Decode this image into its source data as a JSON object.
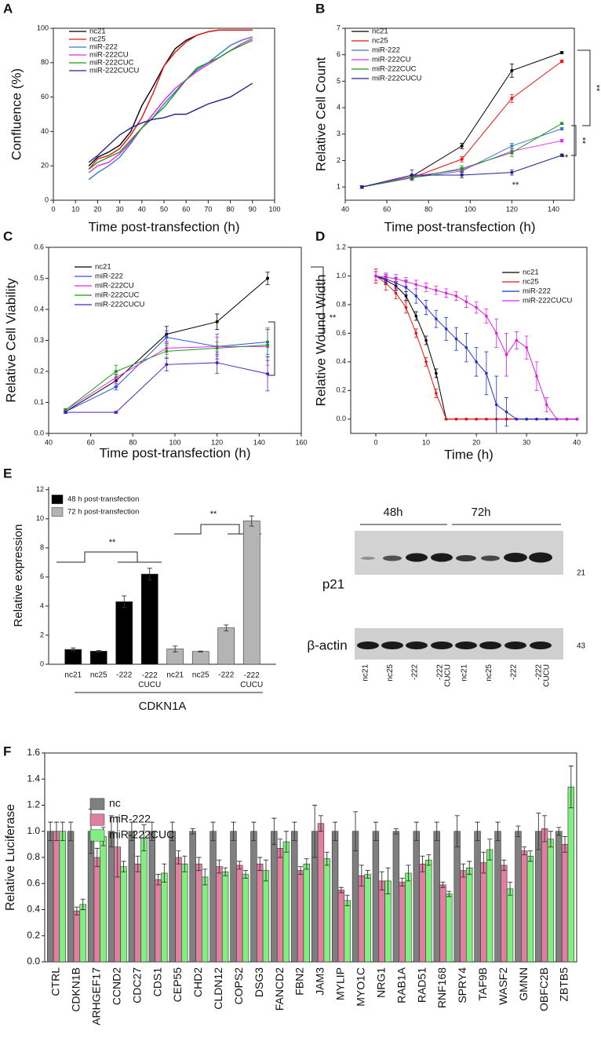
{
  "chart_data": [
    {
      "panel": "A",
      "type": "line",
      "xlabel": "Time post-transfection (h)",
      "ylabel": "Confluence (%)",
      "xlim": [
        0,
        100
      ],
      "ylim": [
        0,
        100
      ],
      "xticks": [
        0,
        10,
        20,
        30,
        40,
        50,
        60,
        70,
        80,
        90,
        100
      ],
      "yticks": [
        0,
        20,
        40,
        60,
        80,
        100
      ],
      "legend": "upper left",
      "markers": false,
      "x": [
        16,
        20,
        25,
        30,
        35,
        40,
        45,
        50,
        55,
        60,
        65,
        70,
        75,
        80,
        85,
        90
      ],
      "series": [
        {
          "name": "nc21",
          "color": "#000000",
          "values": [
            20,
            25,
            28,
            32,
            40,
            55,
            66,
            78,
            88,
            93,
            96,
            98,
            99,
            99,
            99,
            99
          ]
        },
        {
          "name": "nc25",
          "color": "#ee1111",
          "values": [
            18,
            24,
            26,
            30,
            38,
            48,
            62,
            78,
            86,
            92,
            96,
            98,
            99,
            99,
            99,
            99
          ]
        },
        {
          "name": "miR-222",
          "color": "#3a78c8",
          "values": [
            12,
            16,
            20,
            25,
            33,
            42,
            48,
            56,
            63,
            70,
            76,
            80,
            85,
            90,
            93,
            95
          ]
        },
        {
          "name": "miR-222CU",
          "color": "#ee22ee",
          "values": [
            16,
            20,
            22,
            27,
            34,
            42,
            50,
            58,
            65,
            70,
            75,
            79,
            83,
            87,
            91,
            94
          ]
        },
        {
          "name": "miR-222CUC",
          "color": "#1a9a1a",
          "values": [
            18,
            22,
            25,
            28,
            35,
            42,
            48,
            54,
            62,
            70,
            77,
            80,
            83,
            87,
            90,
            93
          ]
        },
        {
          "name": "miR-222CUCU",
          "color": "#22228c",
          "values": [
            22,
            26,
            32,
            38,
            42,
            45,
            47,
            48,
            50,
            50,
            53,
            56,
            58,
            60,
            64,
            68
          ]
        }
      ]
    },
    {
      "panel": "B",
      "type": "line",
      "xlabel": "Time post-transfection (h)",
      "ylabel": "Relative Cell Count",
      "xlim": [
        40,
        150
      ],
      "ylim": [
        0.5,
        7
      ],
      "xticks": [
        40,
        60,
        80,
        100,
        120,
        140
      ],
      "yticks": [
        1,
        2,
        3,
        4,
        5,
        6,
        7
      ],
      "legend": "upper left",
      "markers": true,
      "annotations": [
        "**",
        "**",
        "**",
        "**"
      ],
      "x": [
        48,
        72,
        96,
        120,
        144
      ],
      "series": [
        {
          "name": "nc21",
          "color": "#000000",
          "values": [
            1.0,
            1.4,
            2.55,
            5.4,
            6.08
          ],
          "errors": [
            0.05,
            0.08,
            0.1,
            0.25,
            0.04
          ]
        },
        {
          "name": "nc25",
          "color": "#ee1111",
          "values": [
            1.0,
            1.35,
            2.05,
            4.35,
            5.75
          ],
          "errors": [
            0.05,
            0.05,
            0.1,
            0.15,
            0.05
          ]
        },
        {
          "name": "miR-222",
          "color": "#3a78c8",
          "values": [
            1.0,
            1.35,
            1.6,
            2.55,
            3.2
          ],
          "errors": [
            0.05,
            0.06,
            0.1,
            0.1,
            0.05
          ]
        },
        {
          "name": "miR-222CU",
          "color": "#ee22ee",
          "values": [
            1.0,
            1.4,
            1.65,
            2.35,
            2.75
          ],
          "errors": [
            0.05,
            0.06,
            0.08,
            0.1,
            0.05
          ]
        },
        {
          "name": "miR-222CUC",
          "color": "#1a9a1a",
          "values": [
            1.0,
            1.35,
            1.7,
            2.3,
            3.4
          ],
          "errors": [
            0.05,
            0.06,
            0.1,
            0.15,
            0.04
          ]
        },
        {
          "name": "miR-222CUCU",
          "color": "#22228c",
          "values": [
            1.0,
            1.45,
            1.45,
            1.55,
            2.2
          ],
          "errors": [
            0.05,
            0.2,
            0.1,
            0.1,
            0.05
          ]
        }
      ]
    },
    {
      "panel": "C",
      "type": "line",
      "xlabel": "Time post-transfection (h)",
      "ylabel": "Relative Cell Viability",
      "xlim": [
        40,
        160
      ],
      "ylim": [
        0,
        0.6
      ],
      "xticks": [
        40,
        60,
        80,
        100,
        120,
        140,
        160
      ],
      "yticks": [
        {
          "value": 0,
          "label": "0.0"
        },
        0.1,
        0.2,
        0.3,
        0.4,
        0.5,
        0.6
      ],
      "legend": "upper left",
      "markers": true,
      "annotations": [
        "**"
      ],
      "x": [
        48,
        72,
        96,
        120,
        144
      ],
      "series": [
        {
          "name": "nc21",
          "color": "#000000",
          "values": [
            0.07,
            0.17,
            0.32,
            0.36,
            0.5
          ],
          "errors": [
            0.005,
            0.02,
            0.025,
            0.025,
            0.02
          ]
        },
        {
          "name": "miR-222",
          "color": "#2a50e0",
          "values": [
            0.07,
            0.15,
            0.31,
            0.28,
            0.295
          ],
          "errors": [
            0.005,
            0.01,
            0.02,
            0.04,
            0.04
          ]
        },
        {
          "name": "miR-222CU",
          "color": "#ee22ee",
          "values": [
            0.075,
            0.18,
            0.275,
            0.28,
            0.28
          ],
          "errors": [
            0.005,
            0.02,
            0.02,
            0.03,
            0.06
          ]
        },
        {
          "name": "miR-222CUC",
          "color": "#1a9a1a",
          "values": [
            0.075,
            0.2,
            0.265,
            0.275,
            0.285
          ],
          "errors": [
            0.005,
            0.02,
            0.02,
            0.02,
            0.05
          ]
        },
        {
          "name": "miR-222CUCU",
          "color": "#5020c0",
          "values": [
            0.068,
            0.068,
            0.222,
            0.228,
            0.192
          ],
          "errors": [
            0.003,
            0.003,
            0.02,
            0.035,
            0.055
          ]
        }
      ]
    },
    {
      "panel": "D",
      "type": "line",
      "xlabel": "Time (h)",
      "ylabel": "Relative Wound Width",
      "xlim": [
        -5,
        42
      ],
      "ylim": [
        -0.1,
        1.2
      ],
      "xticks": [
        0,
        10,
        20,
        30,
        40
      ],
      "yticks": [
        {
          "value": 0,
          "label": "0.0"
        },
        0.2,
        0.4,
        0.6,
        0.8,
        {
          "value": 1,
          "label": "1.0"
        },
        1.2
      ],
      "legend": "upper right",
      "markers": true,
      "x": [
        0,
        2,
        4,
        6,
        8,
        10,
        12,
        14,
        16,
        18,
        20,
        22,
        24,
        26,
        28,
        30,
        32,
        34,
        36,
        38,
        40
      ],
      "series": [
        {
          "name": "nc21",
          "color": "#000000",
          "values": [
            1.0,
            0.97,
            0.93,
            0.86,
            0.72,
            0.55,
            0.32,
            0,
            0,
            0,
            0,
            0,
            0,
            0,
            0,
            0,
            0,
            0,
            0,
            0,
            0
          ],
          "errors": [
            0.03,
            0.03,
            0.03,
            0.03,
            0.03,
            0.03,
            0.03,
            0,
            0,
            0,
            0,
            0,
            0,
            0,
            0,
            0,
            0,
            0,
            0,
            0,
            0
          ]
        },
        {
          "name": "nc25",
          "color": "#ee1111",
          "values": [
            1.0,
            0.95,
            0.88,
            0.78,
            0.6,
            0.4,
            0.18,
            0,
            0,
            0,
            0,
            0,
            0,
            0,
            0,
            0,
            0,
            0,
            0,
            0,
            0
          ],
          "errors": [
            0.05,
            0.05,
            0.04,
            0.04,
            0.03,
            0.03,
            0.03,
            0,
            0,
            0,
            0,
            0,
            0,
            0,
            0,
            0,
            0,
            0,
            0,
            0,
            0
          ]
        },
        {
          "name": "miR-222",
          "color": "#2030d0",
          "values": [
            1.0,
            0.98,
            0.95,
            0.92,
            0.86,
            0.78,
            0.7,
            0.63,
            0.56,
            0.5,
            0.4,
            0.32,
            0.1,
            0.05,
            0,
            0,
            0,
            0,
            0,
            0,
            0
          ],
          "errors": [
            0.03,
            0.03,
            0.04,
            0.05,
            0.05,
            0.05,
            0.06,
            0.08,
            0.08,
            0.1,
            0.1,
            0.15,
            0.2,
            0.1,
            0,
            0,
            0,
            0,
            0,
            0,
            0
          ]
        },
        {
          "name": "miR-222CUCU",
          "color": "#e020e0",
          "values": [
            1.0,
            0.99,
            0.98,
            0.96,
            0.94,
            0.92,
            0.9,
            0.88,
            0.86,
            0.82,
            0.78,
            0.72,
            0.6,
            0.45,
            0.55,
            0.5,
            0.3,
            0.1,
            0,
            0,
            0
          ],
          "errors": [
            0.03,
            0.03,
            0.03,
            0.03,
            0.03,
            0.03,
            0.03,
            0.03,
            0.03,
            0.04,
            0.04,
            0.05,
            0.1,
            0.15,
            0.06,
            0.08,
            0.1,
            0.05,
            0,
            0,
            0
          ]
        }
      ]
    },
    {
      "panel": "E",
      "type": "bar",
      "xlabel": "CDKN1A",
      "ylabel": "Relative expression",
      "ylim": [
        0,
        12.2
      ],
      "yticks": [
        0,
        2,
        4,
        6,
        8,
        10,
        12
      ],
      "legend": "upper left",
      "annotations": [
        "**",
        "**"
      ],
      "categories": [
        "nc21",
        "nc25",
        "-222",
        "-222 CUCU",
        "nc21",
        "nc25",
        "-222",
        "-222 CUCU"
      ],
      "series": [
        {
          "name": "48 h post-transfection",
          "color": "#000000",
          "values": [
            1.02,
            0.9,
            4.3,
            6.2,
            null,
            null,
            null,
            null
          ],
          "errors": [
            0.1,
            0.05,
            0.4,
            0.4,
            null,
            null,
            null,
            null
          ]
        },
        {
          "name": "72 h post-transfection",
          "color": "#b4b4b4",
          "values": [
            null,
            null,
            null,
            null,
            1.05,
            0.88,
            2.5,
            9.85
          ],
          "errors": [
            null,
            null,
            null,
            null,
            0.2,
            0.03,
            0.2,
            0.35
          ]
        }
      ]
    },
    {
      "panel": "F",
      "type": "bar",
      "ylabel": "Relative Luciferase",
      "ylim": [
        0,
        1.6
      ],
      "yticks": [
        {
          "value": 0,
          "label": "0.0"
        },
        0.2,
        0.4,
        0.6,
        0.8,
        {
          "value": 1,
          "label": "1.0"
        },
        1.2,
        1.4,
        1.6
      ],
      "legend": "upper left",
      "categories": [
        "CTRL",
        "CDKN1B",
        "ARHGEF17",
        "CCND2",
        "CDC27",
        "CDS1",
        "CEP55",
        "CHD2",
        "CLDN12",
        "COPS2",
        "DSG3",
        "FANCD2",
        "FBN2",
        "JAM3",
        "MYLIP",
        "MYO1C",
        "NRG1",
        "RAB1A",
        "RAD51",
        "RNF168",
        "SPRY4",
        "TAF9B",
        "WASF2",
        "GMNN",
        "OBFC2B",
        "ZBTB5"
      ],
      "series": [
        {
          "name": "nc",
          "color": "#7f7f7f",
          "values": [
            1,
            1,
            1,
            1,
            1,
            1,
            1,
            1,
            1,
            1,
            1,
            1,
            1,
            1,
            1,
            1,
            1,
            1,
            1,
            1,
            1,
            1,
            1,
            1,
            1,
            1
          ],
          "errors": [
            0.07,
            0.07,
            0.17,
            0.12,
            0.07,
            0.07,
            0.07,
            0.02,
            0.07,
            0.07,
            0.07,
            0.1,
            0.07,
            0.2,
            0.07,
            0.15,
            0.07,
            0.02,
            0.07,
            0.07,
            0.12,
            0.07,
            0.07,
            0.04,
            0.14,
            0.03
          ]
        },
        {
          "name": "miR-222",
          "color": "#e07f9f",
          "values": [
            1,
            0.39,
            0.8,
            0.88,
            0.75,
            0.63,
            0.8,
            0.75,
            0.73,
            0.74,
            0.75,
            0.87,
            0.7,
            1.06,
            0.55,
            0.66,
            0.62,
            0.61,
            0.75,
            0.59,
            0.7,
            0.76,
            0.74,
            0.85,
            1.02,
            0.9
          ],
          "errors": [
            0.07,
            0.03,
            0.07,
            0.23,
            0.06,
            0.04,
            0.05,
            0.05,
            0.05,
            0.03,
            0.05,
            0.07,
            0.03,
            0.06,
            0.02,
            0.08,
            0.07,
            0.03,
            0.06,
            0.02,
            0.05,
            0.08,
            0.04,
            0.03,
            0.1,
            0.06
          ]
        },
        {
          "name": "miR-222CUC",
          "color": "#7fef7f",
          "values": [
            1,
            0.44,
            0.96,
            0.73,
            0.95,
            0.68,
            0.75,
            0.65,
            0.69,
            0.67,
            0.7,
            0.92,
            0.75,
            0.79,
            0.47,
            0.67,
            0.62,
            0.68,
            0.78,
            0.52,
            0.72,
            0.86,
            0.56,
            0.81,
            0.94,
            1.34
          ],
          "errors": [
            0.07,
            0.04,
            0.07,
            0.04,
            0.1,
            0.07,
            0.06,
            0.06,
            0.03,
            0.03,
            0.08,
            0.08,
            0.04,
            0.05,
            0.04,
            0.03,
            0.1,
            0.06,
            0.04,
            0.02,
            0.05,
            0.08,
            0.05,
            0.04,
            0.06,
            0.16
          ]
        }
      ]
    }
  ],
  "western_blot": {
    "timepoints": [
      "48h",
      "72h"
    ],
    "proteins": [
      "p21",
      "β-actin"
    ],
    "sizes": [
      "21",
      "43"
    ],
    "lanes": [
      "nc21",
      "nc25",
      "-222",
      "-222 CUCU",
      "nc21",
      "nc25",
      "-222",
      "-222 CUCU"
    ]
  }
}
